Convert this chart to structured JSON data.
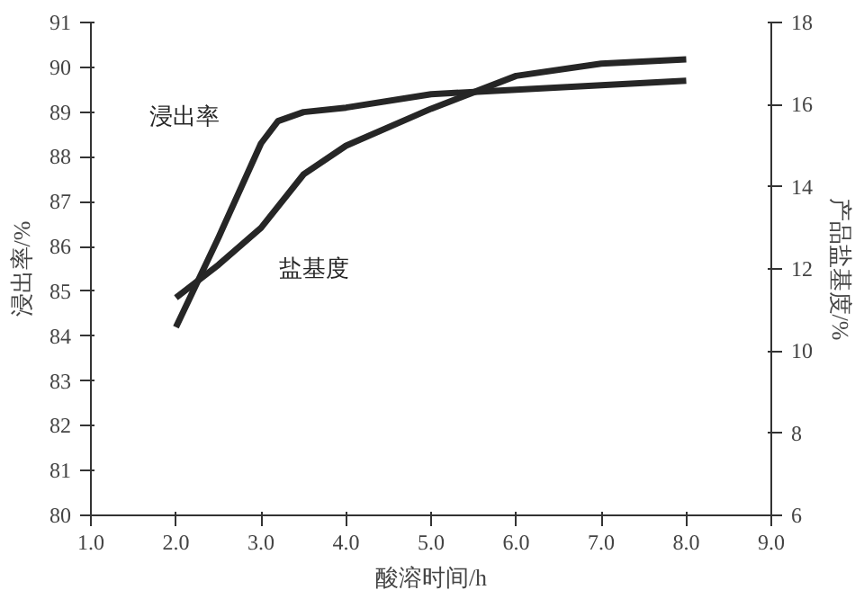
{
  "chart_data": {
    "type": "line",
    "xlabel": "酸溶时间/h",
    "ylabel": "浸出率/%",
    "y2label": "产品盐基度/%",
    "xlim": [
      1.0,
      9.0
    ],
    "xticks": [
      {
        "value": 1,
        "label": "1.0"
      },
      {
        "value": 2,
        "label": "2.0"
      },
      {
        "value": 3,
        "label": "3.0"
      },
      {
        "value": 4,
        "label": "4.0"
      },
      {
        "value": 5,
        "label": "5.0"
      },
      {
        "value": 6,
        "label": "6.0"
      },
      {
        "value": 7,
        "label": "7.0"
      },
      {
        "value": 8,
        "label": "8.0"
      },
      {
        "value": 9,
        "label": "9.0"
      }
    ],
    "ylim": [
      80,
      91
    ],
    "yticks": [
      80,
      81,
      82,
      83,
      84,
      85,
      86,
      87,
      88,
      89,
      90,
      91
    ],
    "y2lim": [
      6,
      18
    ],
    "y2ticks": [
      6,
      8,
      10,
      12,
      14,
      16,
      18
    ],
    "grid": false,
    "series": [
      {
        "name": "浸出率",
        "color": "#262626",
        "x": [
          2.0,
          2.5,
          3.0,
          3.2,
          3.5,
          4.0,
          5.0,
          6.0,
          7.0,
          8.0
        ],
        "values": [
          84.2,
          86.2,
          88.3,
          88.8,
          89.0,
          89.1,
          89.4,
          89.5,
          89.6,
          89.7
        ]
      },
      {
        "name": "盐基度",
        "color": "#262626",
        "axis": "y2",
        "x": [
          2.0,
          2.5,
          3.0,
          3.5,
          4.0,
          5.0,
          5.5,
          6.0,
          7.0,
          8.0
        ],
        "values": [
          11.3,
          12.1,
          13.0,
          14.3,
          15.0,
          15.9,
          16.3,
          16.7,
          17.0,
          17.1
        ]
      }
    ]
  }
}
